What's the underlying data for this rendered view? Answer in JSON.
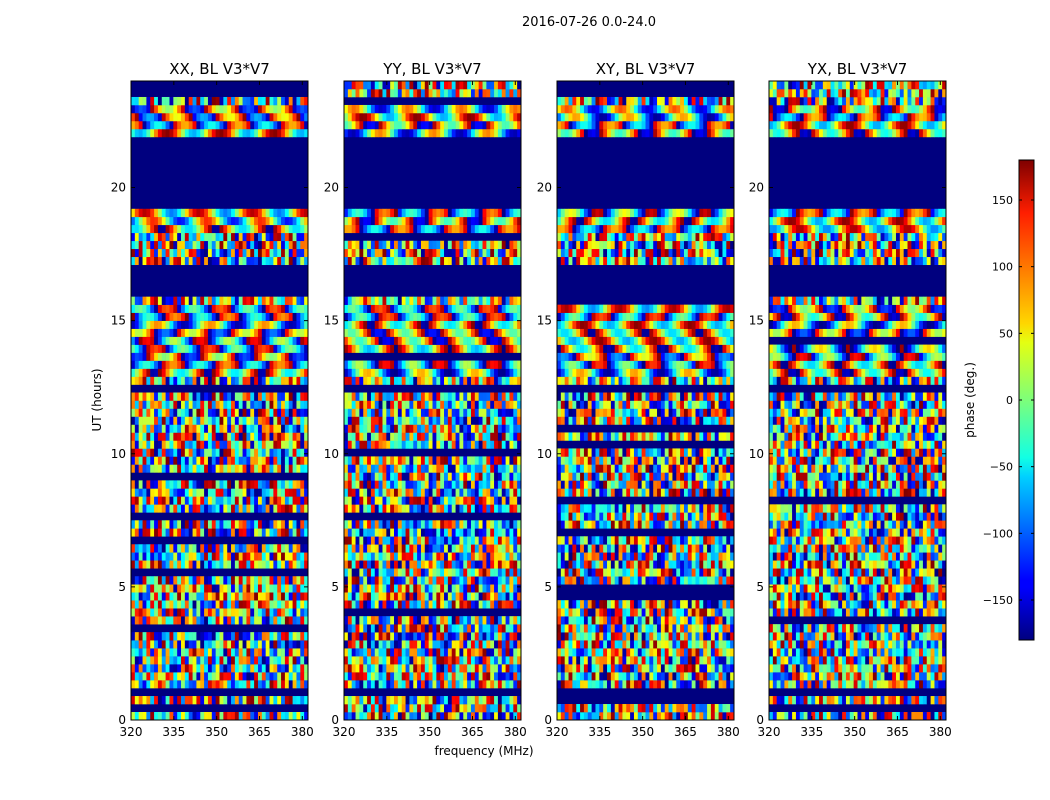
{
  "figure": {
    "suptitle": "2016-07-26 0.0-24.0",
    "xlabel": "frequency (MHz)",
    "ylabel": "UT (hours)"
  },
  "chart_data": [
    {
      "type": "heatmap",
      "title": "XX, BL V3*V7",
      "xlim": [
        320,
        382
      ],
      "ylim": [
        0,
        24
      ],
      "xticks": [
        320,
        335,
        350,
        365,
        380
      ],
      "yticks": [
        0,
        5,
        10,
        15,
        20
      ]
    },
    {
      "type": "heatmap",
      "title": "YY, BL V3*V7",
      "xlim": [
        320,
        382
      ],
      "ylim": [
        0,
        24
      ],
      "xticks": [
        320,
        335,
        350,
        365,
        380
      ],
      "yticks": [
        0,
        5,
        10,
        15,
        20
      ]
    },
    {
      "type": "heatmap",
      "title": "XY, BL V3*V7",
      "xlim": [
        320,
        382
      ],
      "ylim": [
        0,
        24
      ],
      "xticks": [
        320,
        335,
        350,
        365,
        380
      ],
      "yticks": [
        0,
        5,
        10,
        15,
        20
      ]
    },
    {
      "type": "heatmap",
      "title": "YX, BL V3*V7",
      "xlim": [
        320,
        382
      ],
      "ylim": [
        0,
        24
      ],
      "xticks": [
        320,
        335,
        350,
        365,
        380
      ],
      "yticks": [
        0,
        5,
        10,
        15,
        20
      ]
    }
  ],
  "colorbar": {
    "label": "phase (deg.)",
    "range": [
      -180,
      180
    ],
    "ticks": [
      -150,
      -100,
      -50,
      0,
      50,
      100,
      150
    ],
    "tick_labels": [
      "−150",
      "−100",
      "−50",
      "0",
      "50",
      "100",
      "150"
    ],
    "colormap": "jet"
  },
  "masked_bands_hours": [
    [
      19.3,
      21.9
    ],
    [
      16.0,
      17.0
    ],
    [
      12.2,
      12.5
    ],
    [
      1.0,
      1.2
    ]
  ]
}
